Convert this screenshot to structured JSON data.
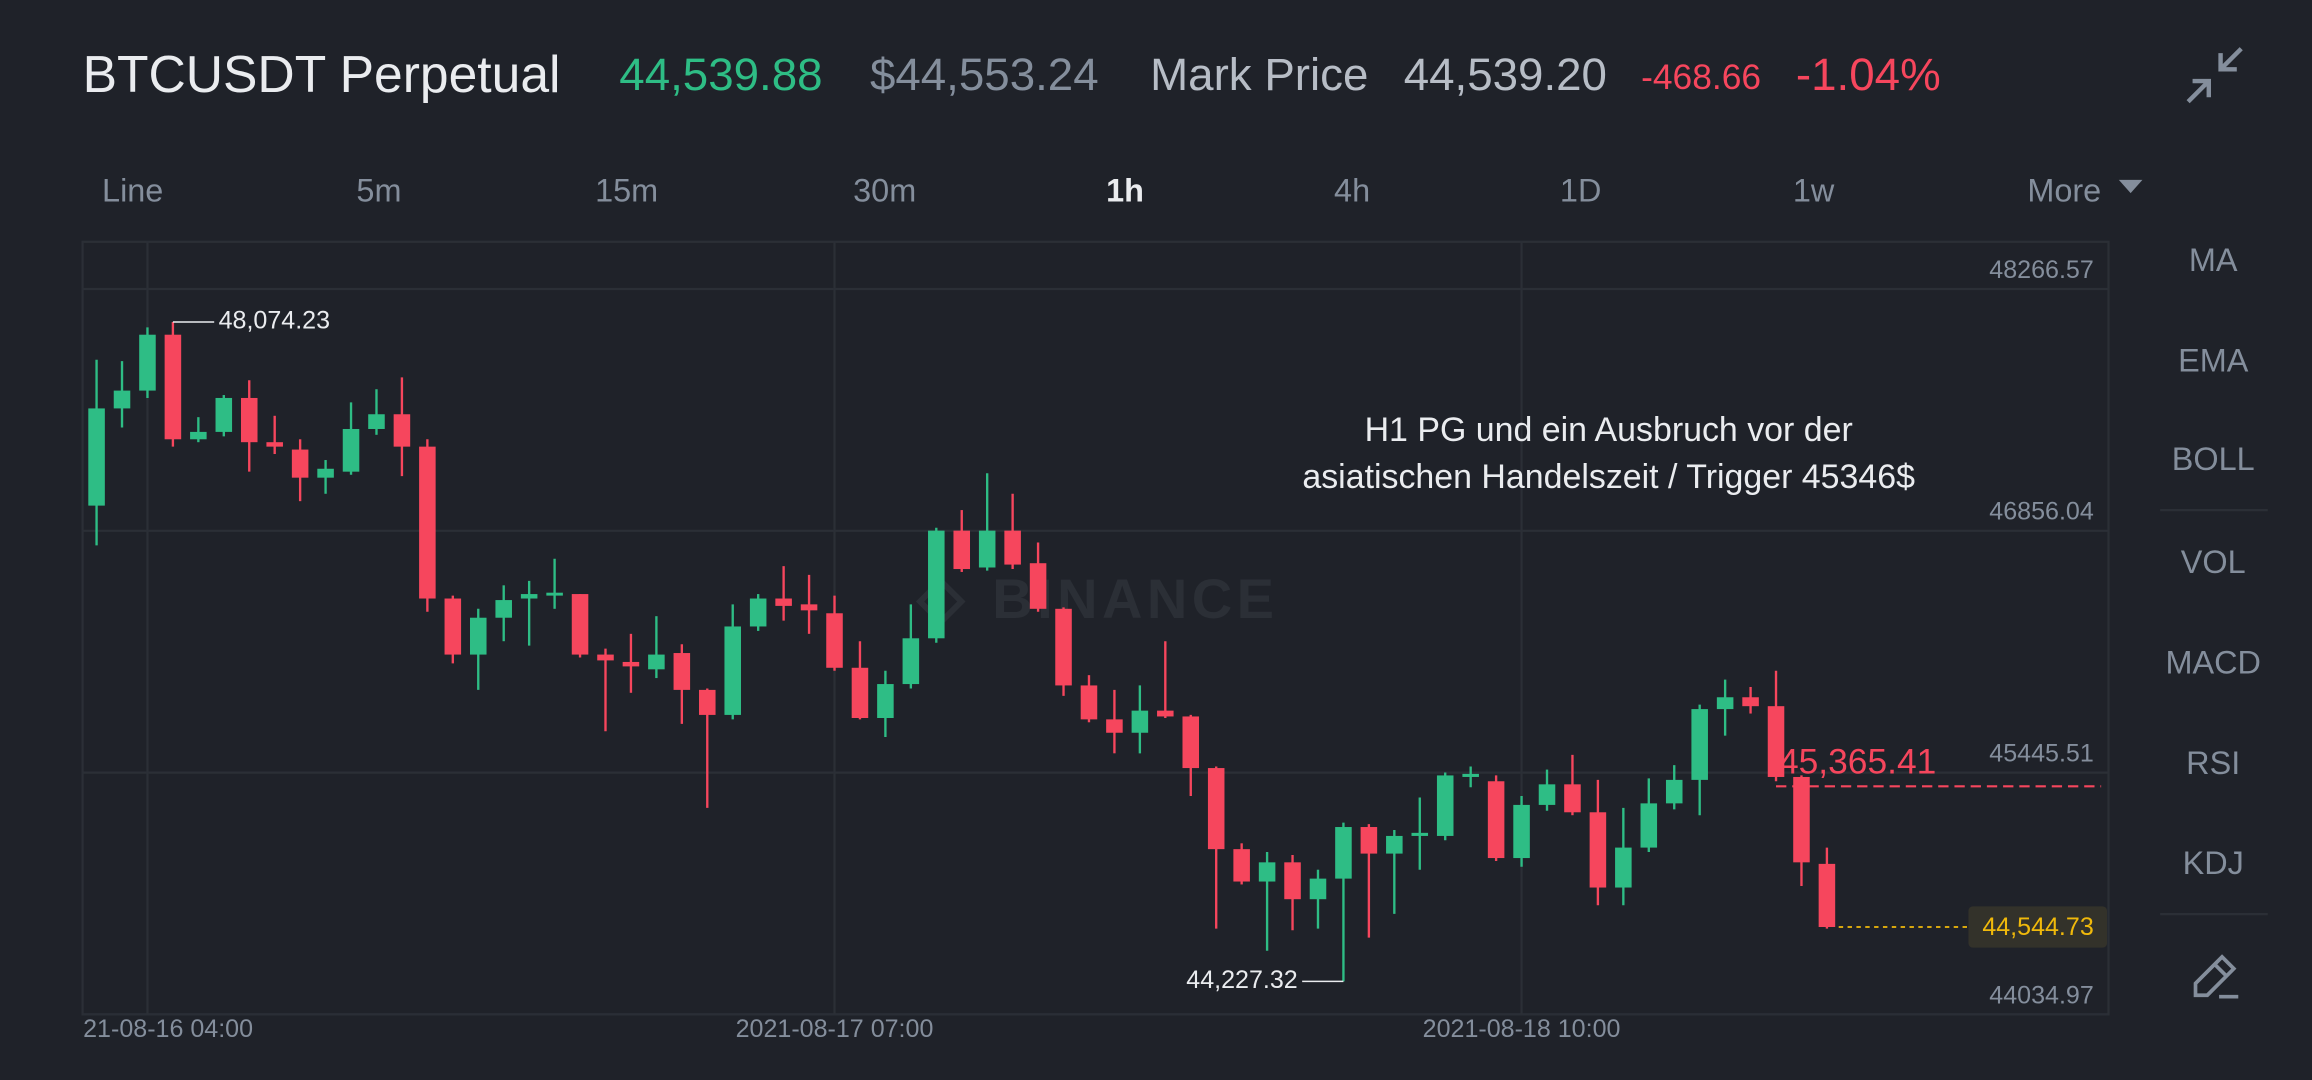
{
  "header": {
    "symbol": "BTCUSDT Perpetual",
    "last_price": "44,539.88",
    "index_price": "$44,553.24",
    "mark_label": "Mark Price",
    "mark_price": "44,539.20",
    "change": "-468.66",
    "change_percent": "-1.04%"
  },
  "tabs": [
    {
      "label": "Line"
    },
    {
      "label": "5m"
    },
    {
      "label": "15m"
    },
    {
      "label": "30m"
    },
    {
      "label": "1h",
      "active": true
    },
    {
      "label": "4h"
    },
    {
      "label": "1D"
    },
    {
      "label": "1w"
    },
    {
      "label": "More"
    }
  ],
  "indicators": [
    "MA",
    "EMA",
    "BOLL",
    "VOL",
    "MACD",
    "RSI",
    "KDJ"
  ],
  "chart_data": {
    "type": "candlestick",
    "watermark": "BINANCE",
    "up_color": "#2ebd85",
    "down_color": "#f6465d",
    "grid": true,
    "ylim": [
      44034.97,
      48542
    ],
    "yticks": [
      44034.97,
      45445.51,
      46856.04,
      48266.57
    ],
    "xlim": [
      "2021-08-16 01:27",
      "2021-08-19 09:04"
    ],
    "xticks": [
      {
        "value": "2021-08-16 04:00",
        "label": "21-08-16 04:00"
      },
      "2021-08-17 07:00",
      "2021-08-18 10:00"
    ],
    "x": [
      "2021-08-16 02:00",
      "2021-08-16 03:00",
      "2021-08-16 04:00",
      "2021-08-16 05:00",
      "2021-08-16 06:00",
      "2021-08-16 07:00",
      "2021-08-16 08:00",
      "2021-08-16 09:00",
      "2021-08-16 10:00",
      "2021-08-16 11:00",
      "2021-08-16 12:00",
      "2021-08-16 13:00",
      "2021-08-16 14:00",
      "2021-08-16 15:00",
      "2021-08-16 16:00",
      "2021-08-16 17:00",
      "2021-08-16 18:00",
      "2021-08-16 19:00",
      "2021-08-16 20:00",
      "2021-08-16 21:00",
      "2021-08-16 22:00",
      "2021-08-16 23:00",
      "2021-08-17 00:00",
      "2021-08-17 01:00",
      "2021-08-17 02:00",
      "2021-08-17 03:00",
      "2021-08-17 04:00",
      "2021-08-17 05:00",
      "2021-08-17 06:00",
      "2021-08-17 07:00",
      "2021-08-17 08:00",
      "2021-08-17 09:00",
      "2021-08-17 10:00",
      "2021-08-17 11:00",
      "2021-08-17 12:00",
      "2021-08-17 13:00",
      "2021-08-17 14:00",
      "2021-08-17 15:00",
      "2021-08-17 16:00",
      "2021-08-17 17:00",
      "2021-08-17 18:00",
      "2021-08-17 19:00",
      "2021-08-17 20:00",
      "2021-08-17 21:00",
      "2021-08-17 22:00",
      "2021-08-17 23:00",
      "2021-08-18 00:00",
      "2021-08-18 01:00",
      "2021-08-18 02:00",
      "2021-08-18 03:00",
      "2021-08-18 04:00",
      "2021-08-18 05:00",
      "2021-08-18 06:00",
      "2021-08-18 07:00",
      "2021-08-18 08:00",
      "2021-08-18 09:00",
      "2021-08-18 10:00",
      "2021-08-18 11:00",
      "2021-08-18 12:00",
      "2021-08-18 13:00",
      "2021-08-18 14:00",
      "2021-08-18 15:00",
      "2021-08-18 16:00",
      "2021-08-18 17:00",
      "2021-08-18 18:00",
      "2021-08-18 19:00",
      "2021-08-18 20:00",
      "2021-08-18 21:00",
      "2021-08-18 22:00"
    ],
    "ohlc": [
      [
        47003,
        47854,
        46771,
        47570
      ],
      [
        47570,
        47846,
        47459,
        47674
      ],
      [
        47674,
        48043,
        47631,
        48000
      ],
      [
        48000,
        48074.23,
        47347,
        47390
      ],
      [
        47390,
        47519,
        47373,
        47433
      ],
      [
        47433,
        47648,
        47407,
        47631
      ],
      [
        47631,
        47734,
        47201,
        47373
      ],
      [
        47373,
        47527,
        47304,
        47347
      ],
      [
        47330,
        47390,
        47029,
        47166
      ],
      [
        47166,
        47269,
        47072,
        47218
      ],
      [
        47201,
        47605,
        47183,
        47450
      ],
      [
        47450,
        47682,
        47416,
        47536
      ],
      [
        47536,
        47751,
        47175,
        47347
      ],
      [
        47347,
        47390,
        46384,
        46461
      ],
      [
        46461,
        46478,
        46083,
        46134
      ],
      [
        46134,
        46401,
        45928,
        46349
      ],
      [
        46349,
        46538,
        46212,
        46452
      ],
      [
        46461,
        46564,
        46186,
        46487
      ],
      [
        46478,
        46693,
        46401,
        46495
      ],
      [
        46487,
        46487,
        46117,
        46134
      ],
      [
        46134,
        46169,
        45687,
        46100
      ],
      [
        46091,
        46255,
        45911,
        46065
      ],
      [
        46048,
        46358,
        45997,
        46134
      ],
      [
        46143,
        46194,
        45730,
        45928
      ],
      [
        45928,
        45936,
        45240,
        45782
      ],
      [
        45782,
        46427,
        45756,
        46298
      ],
      [
        46298,
        46487,
        46272,
        46461
      ],
      [
        46461,
        46650,
        46332,
        46418
      ],
      [
        46427,
        46599,
        46255,
        46392
      ],
      [
        46375,
        46478,
        46040,
        46057
      ],
      [
        46057,
        46212,
        45756,
        45764
      ],
      [
        45764,
        46040,
        45653,
        45962
      ],
      [
        45962,
        46427,
        45936,
        46229
      ],
      [
        46229,
        46874,
        46203,
        46857
      ],
      [
        46857,
        46977,
        46616,
        46633
      ],
      [
        46642,
        47192,
        46624,
        46857
      ],
      [
        46857,
        47072,
        46633,
        46659
      ],
      [
        46667,
        46788,
        46384,
        46401
      ],
      [
        46401,
        46409,
        45893,
        45954
      ],
      [
        45954,
        46014,
        45739,
        45756
      ],
      [
        45756,
        45928,
        45558,
        45678
      ],
      [
        45678,
        45954,
        45558,
        45807
      ],
      [
        45807,
        46212,
        45764,
        45773
      ],
      [
        45773,
        45782,
        45309,
        45472
      ],
      [
        45472,
        45481,
        44535,
        44999
      ],
      [
        44999,
        45033,
        44793,
        44810
      ],
      [
        44810,
        44982,
        44406,
        44922
      ],
      [
        44922,
        44965,
        44526,
        44707
      ],
      [
        44707,
        44879,
        44535,
        44827
      ],
      [
        44827,
        45154,
        44227.32,
        45128
      ],
      [
        45128,
        45145,
        44483,
        44973
      ],
      [
        44973,
        45111,
        44621,
        45076
      ],
      [
        45076,
        45300,
        44879,
        45094
      ],
      [
        45076,
        45446,
        45051,
        45429
      ],
      [
        45420,
        45481,
        45360,
        45438
      ],
      [
        45395,
        45429,
        44930,
        44947
      ],
      [
        44947,
        45309,
        44896,
        45257
      ],
      [
        45257,
        45463,
        45223,
        45377
      ],
      [
        45377,
        45549,
        45197,
        45214
      ],
      [
        45214,
        45403,
        44672,
        44775
      ],
      [
        44775,
        45240,
        44672,
        45008
      ],
      [
        45008,
        45412,
        44982,
        45266
      ],
      [
        45266,
        45489,
        45231,
        45403
      ],
      [
        45403,
        45842,
        45197,
        45816
      ],
      [
        45816,
        45988,
        45661,
        45885
      ],
      [
        45885,
        45945,
        45790,
        45833
      ],
      [
        45833,
        46040,
        45395,
        45420
      ],
      [
        45420,
        45429,
        44784,
        44922
      ],
      [
        44913,
        45008,
        44535,
        44544.73
      ]
    ],
    "high_label": {
      "value": 48074.23,
      "label": "48,074.23"
    },
    "low_label": {
      "value": 44227.32,
      "label": "44,227.32"
    },
    "price_lines": [
      {
        "value": 45365.41,
        "label": "45,365.41",
        "color": "#f6465d",
        "style": "dashed"
      },
      {
        "value": 44544.73,
        "label": "44,544.73",
        "color": "#f0b90b",
        "style": "dotted"
      }
    ],
    "note": [
      "H1 PG und ein Ausbruch vor der",
      "asiatischen Handelszeit / Trigger 45346$"
    ]
  }
}
